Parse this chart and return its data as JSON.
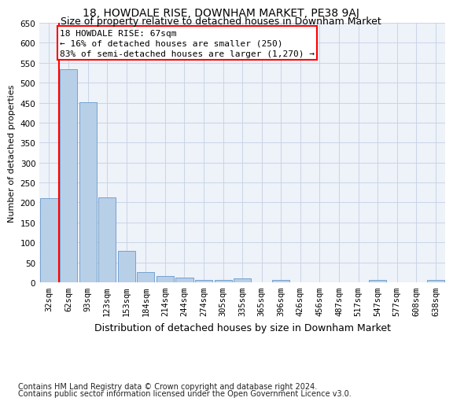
{
  "title": "18, HOWDALE RISE, DOWNHAM MARKET, PE38 9AJ",
  "subtitle": "Size of property relative to detached houses in Downham Market",
  "xlabel": "Distribution of detached houses by size in Downham Market",
  "ylabel": "Number of detached properties",
  "categories": [
    "32sqm",
    "62sqm",
    "93sqm",
    "123sqm",
    "153sqm",
    "184sqm",
    "214sqm",
    "244sqm",
    "274sqm",
    "305sqm",
    "335sqm",
    "365sqm",
    "396sqm",
    "426sqm",
    "456sqm",
    "487sqm",
    "517sqm",
    "547sqm",
    "577sqm",
    "608sqm",
    "638sqm"
  ],
  "values": [
    210,
    533,
    452,
    212,
    78,
    26,
    15,
    12,
    5,
    5,
    9,
    0,
    6,
    0,
    0,
    0,
    0,
    6,
    0,
    0,
    6
  ],
  "bar_color": "#b8cfe8",
  "bar_edgecolor": "#6699cc",
  "redline_bar_index": 1,
  "annotation_text": "18 HOWDALE RISE: 67sqm\n← 16% of detached houses are smaller (250)\n83% of semi-detached houses are larger (1,270) →",
  "annotation_box_edgecolor": "red",
  "redline_color": "red",
  "ylim": [
    0,
    650
  ],
  "yticks": [
    0,
    50,
    100,
    150,
    200,
    250,
    300,
    350,
    400,
    450,
    500,
    550,
    600,
    650
  ],
  "bg_color": "#eef2f9",
  "grid_color": "#c5d0e4",
  "footnote1": "Contains HM Land Registry data © Crown copyright and database right 2024.",
  "footnote2": "Contains public sector information licensed under the Open Government Licence v3.0.",
  "title_fontsize": 10,
  "subtitle_fontsize": 9,
  "xlabel_fontsize": 9,
  "ylabel_fontsize": 8,
  "tick_fontsize": 7.5,
  "footnote_fontsize": 7,
  "annotation_fontsize": 8
}
